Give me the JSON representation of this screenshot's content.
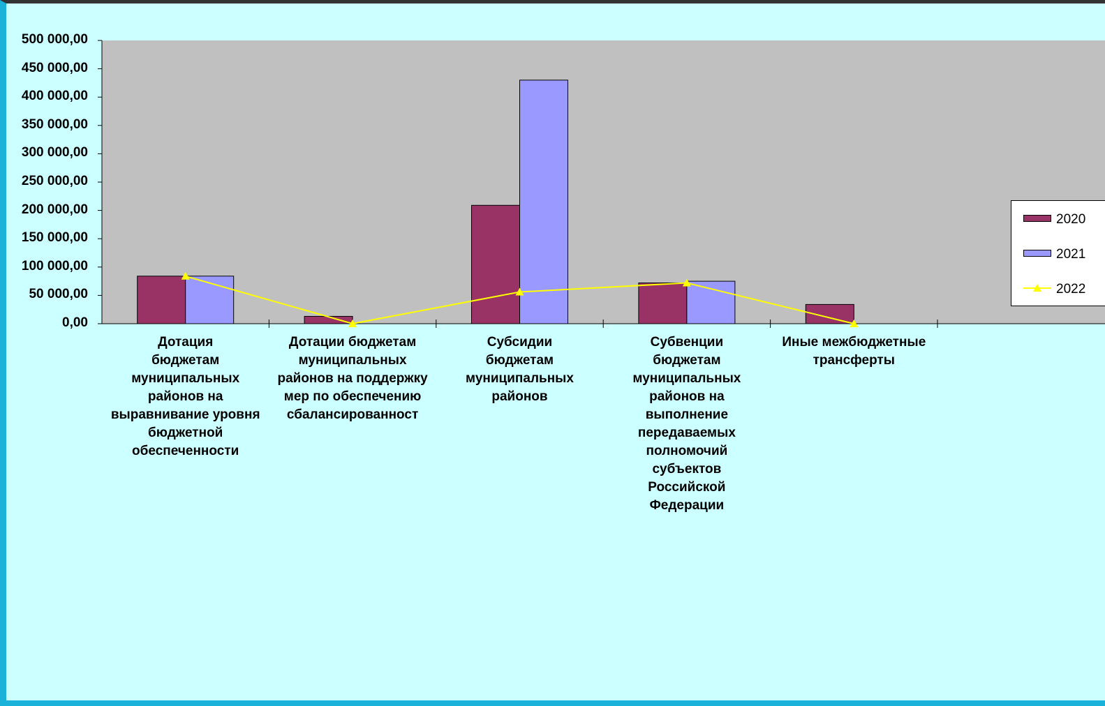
{
  "chart_data": {
    "type": "bar",
    "categories": [
      "Дотация бюджетам муниципальных районов на выравнивание уровня бюджетной обеспеченности",
      "Дотации бюджетам муниципальных районов на поддержку мер по обеспечению сбалансированност",
      "Субсидии бюджетам муниципальных районов",
      "Субвенции бюджетам муниципальных районов на выполнение передаваемых полномочий субъектов Российской Федерации",
      "Иные межбюджетные трансферты"
    ],
    "category_labels": [
      "Дотация\nбюджетам\nмуниципальных\nрайонов на\nвыравнивание уровня\nбюджетной\nобеспеченности",
      "Дотации бюджетам\nмуниципальных\nрайонов на поддержку\nмер по обеспечению\nсбалансированност",
      "Субсидии\nбюджетам\nмуниципальных\nрайонов",
      "Субвенции\nбюджетам\nмуниципальных\nрайонов на\nвыполнение\nпередаваемых\nполномочий\nсубъектов\nРоссийской\nФедерации",
      "Иные межбюджетные\nтрансферты"
    ],
    "series": [
      {
        "name": "2020",
        "type": "bar",
        "color": "#993366",
        "values": [
          84000,
          13000,
          209000,
          72000,
          34000
        ]
      },
      {
        "name": "2021",
        "type": "bar",
        "color": "#9999ff",
        "values": [
          84000,
          0,
          430000,
          75000,
          0
        ]
      },
      {
        "name": "2022",
        "type": "line",
        "color": "#ffff00",
        "values": [
          84000,
          0,
          56000,
          72000,
          0
        ]
      }
    ],
    "ylim": [
      0,
      500000
    ],
    "y_ticks": [
      0,
      50000,
      100000,
      150000,
      200000,
      250000,
      300000,
      350000,
      400000,
      450000,
      500000
    ],
    "y_tick_labels": [
      "0,00",
      "50 000,00",
      "100 000,00",
      "150 000,00",
      "200 000,00",
      "250 000,00",
      "300 000,00",
      "350 000,00",
      "400 000,00",
      "450 000,00",
      "500 000,00"
    ],
    "plot_area_color": "#c0c0c0",
    "legend_position": "right",
    "grid": false
  }
}
